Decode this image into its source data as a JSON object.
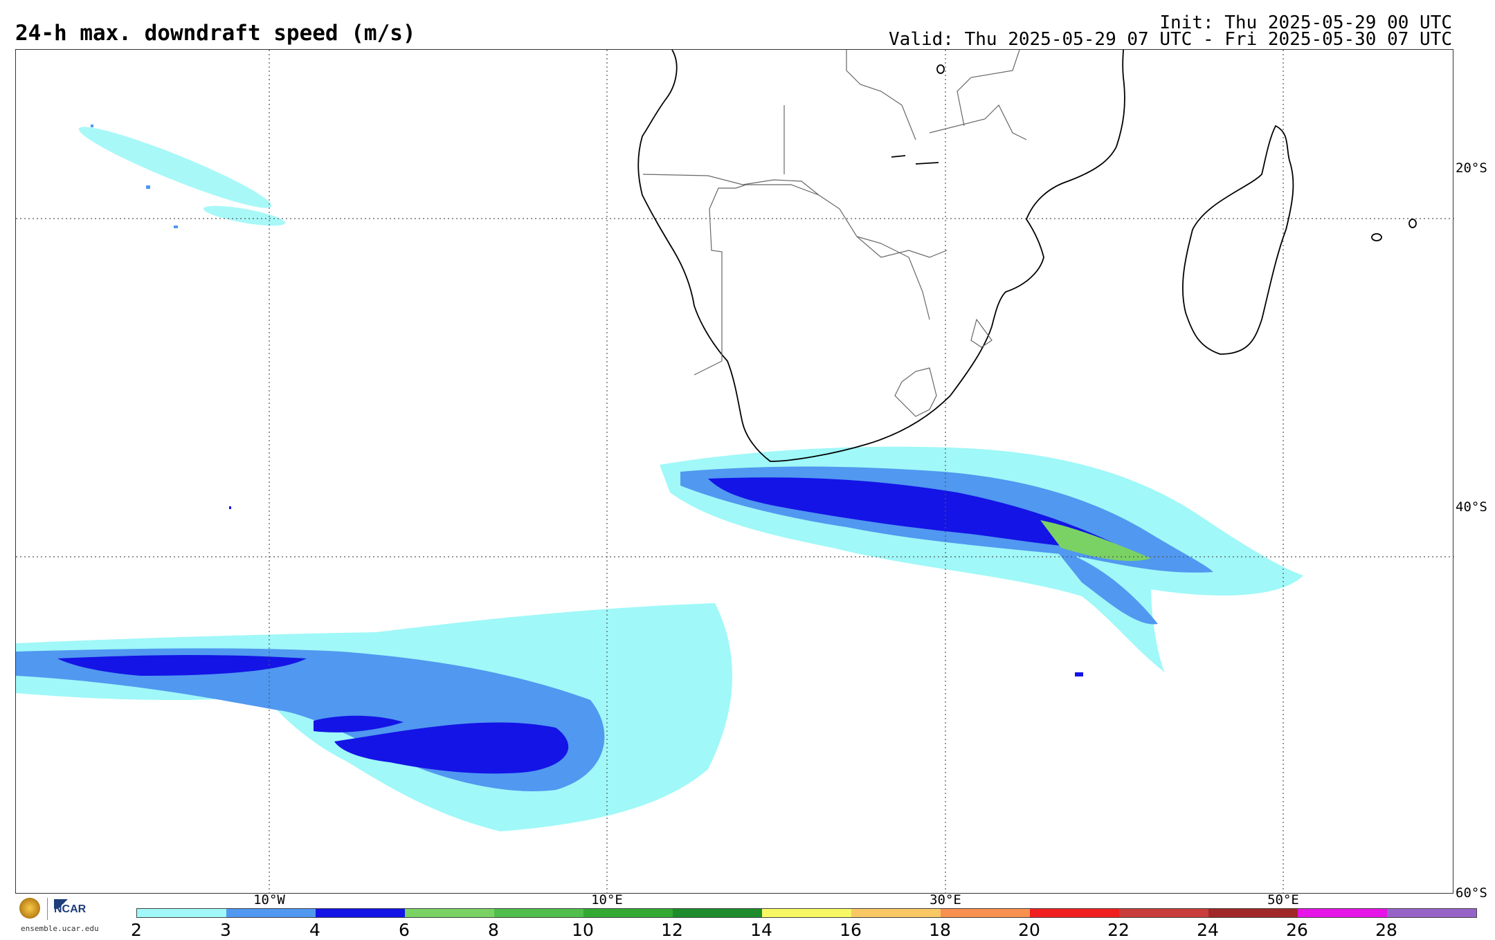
{
  "header": {
    "title": "24-h max. downdraft speed (m/s)",
    "init": "Init: Thu 2025-05-29 00 UTC",
    "valid": "Valid: Thu 2025-05-29 07 UTC - Fri 2025-05-30 07 UTC"
  },
  "map": {
    "lat_labels": [
      "20°S",
      "40°S",
      "60°S"
    ],
    "lon_labels": [
      "10°W",
      "10°E",
      "30°E",
      "50°E"
    ]
  },
  "legend": {
    "colors": [
      "#a0f8f8",
      "#5098f0",
      "#1414e6",
      "#7ad264",
      "#50be4c",
      "#32aa32",
      "#1e8c2c",
      "#f8f864",
      "#f8c864",
      "#f89050",
      "#f01e1e",
      "#c83c3c",
      "#a02828",
      "#e614e6",
      "#9664c8"
    ],
    "ticks": [
      "2",
      "3",
      "4",
      "6",
      "8",
      "10",
      "12",
      "14",
      "16",
      "18",
      "20",
      "22",
      "24",
      "26",
      "28"
    ]
  },
  "logos": {
    "org": "NCAR",
    "url": "ensemble.ucar.edu"
  }
}
